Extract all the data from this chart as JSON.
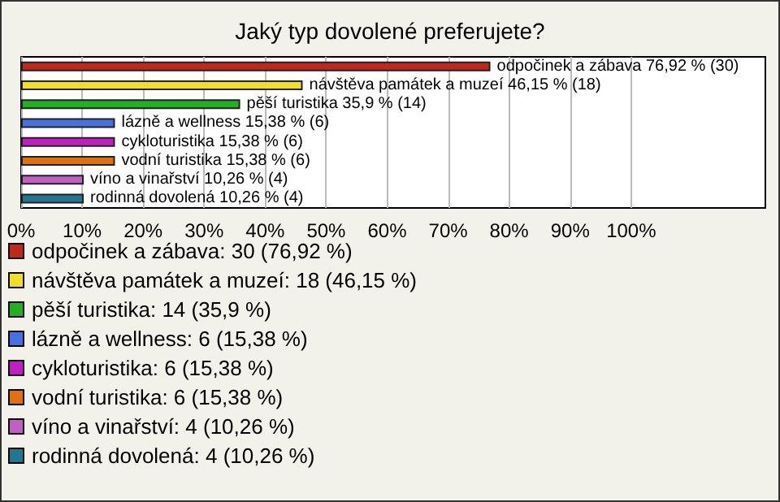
{
  "chart_data": {
    "type": "bar",
    "orientation": "horizontal",
    "stacked": true,
    "title": "Jaký typ dovolené preferujete?",
    "categories": [
      null,
      null,
      null,
      null,
      null,
      null,
      null,
      null
    ],
    "series": [
      {
        "name": "odpočinek a zábava: 30 (76,92 %)",
        "color": "#c0281c",
        "values": [
          76.92,
          null,
          null,
          null,
          null,
          null,
          null,
          null
        ],
        "value_labels": [
          "odpočinek a zábava 76,92 % (30)",
          null,
          null,
          null,
          null,
          null,
          null,
          null
        ]
      },
      {
        "name": "návštěva památek a muzeí: 18 (46,15 %)",
        "color": "#f0e020",
        "values": [
          null,
          46.15,
          null,
          null,
          null,
          null,
          null,
          null
        ],
        "value_labels": [
          null,
          "návštěva památek a muzeí 46,15 % (18)",
          null,
          null,
          null,
          null,
          null,
          null
        ]
      },
      {
        "name": "pěší turistika: 14 (35,9 %)",
        "color": "#20b020",
        "values": [
          null,
          null,
          35.9,
          null,
          null,
          null,
          null,
          null
        ],
        "value_labels": [
          null,
          null,
          "pěší turistika 35,9 % (14)",
          null,
          null,
          null,
          null,
          null
        ]
      },
      {
        "name": "lázně a wellness: 6 (15,38 %)",
        "color": "#4a70e0",
        "values": [
          null,
          null,
          null,
          15.38,
          null,
          null,
          null,
          null
        ],
        "value_labels": [
          null,
          null,
          null,
          "lázně a wellness 15,38 % (6)",
          null,
          null,
          null,
          null
        ]
      },
      {
        "name": "cykloturistika: 6 (15,38 %)",
        "color": "#c020c0",
        "values": [
          null,
          null,
          null,
          null,
          15.38,
          null,
          null,
          null
        ],
        "value_labels": [
          null,
          null,
          null,
          null,
          "cykloturistika 15,38 % (6)",
          null,
          null,
          null
        ]
      },
      {
        "name": "vodní turistika: 6 (15,38 %)",
        "color": "#e07010",
        "values": [
          null,
          null,
          null,
          null,
          null,
          15.38,
          null,
          null
        ],
        "value_labels": [
          null,
          null,
          null,
          null,
          null,
          "vodní turistika 15,38 % (6)",
          null,
          null
        ]
      },
      {
        "name": "víno a vinařství: 4 (10,26 %)",
        "color": "#c060c0",
        "values": [
          null,
          null,
          null,
          null,
          null,
          null,
          10.26,
          null
        ],
        "value_labels": [
          null,
          null,
          null,
          null,
          null,
          null,
          "víno a vinařství 10,26 % (4)",
          null
        ]
      },
      {
        "name": "rodinná dovolená: 4 (10,26 %)",
        "color": "#207890",
        "values": [
          null,
          null,
          null,
          null,
          null,
          null,
          null,
          10.26
        ],
        "value_labels": [
          null,
          null,
          null,
          null,
          null,
          null,
          null,
          "rodinná dovolená 10,26 % (4)"
        ]
      }
    ],
    "xlim": [
      0,
      122
    ],
    "xticks": [
      {
        "value": 0,
        "label": "0%"
      },
      {
        "value": 10,
        "label": "10%"
      },
      {
        "value": 20,
        "label": "20%"
      },
      {
        "value": 30,
        "label": "30%"
      },
      {
        "value": 40,
        "label": "40%"
      },
      {
        "value": 50,
        "label": "50%"
      },
      {
        "value": 60,
        "label": "60%"
      },
      {
        "value": 70,
        "label": "70%"
      },
      {
        "value": 80,
        "label": "80%"
      },
      {
        "value": 90,
        "label": "90%"
      },
      {
        "value": 100,
        "label": "100%"
      }
    ],
    "grid": "x",
    "legend": "bottom",
    "tick_labels": "x"
  }
}
